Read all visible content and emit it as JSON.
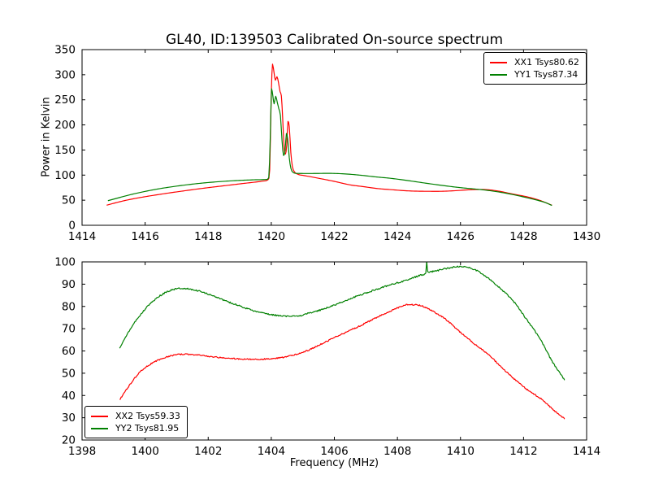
{
  "title": "GL40, ID:139503 Calibrated On-source spectrum",
  "chart_data": [
    {
      "type": "line",
      "title": "GL40, ID:139503 Calibrated On-source spectrum",
      "xlabel": "",
      "ylabel": "Power in Kelvin",
      "xlim": [
        1414,
        1430
      ],
      "ylim": [
        0,
        350
      ],
      "x_ticks": [
        1414,
        1416,
        1418,
        1420,
        1422,
        1424,
        1426,
        1428,
        1430
      ],
      "y_ticks": [
        0,
        50,
        100,
        150,
        200,
        250,
        300,
        350
      ],
      "grid": false,
      "legend_position": "upper right",
      "series": [
        {
          "name": "XX1 Tsys80.62",
          "color": "#ff0000",
          "noise": 0,
          "points": [
            [
              1414.78,
              40
            ],
            [
              1415.2,
              47
            ],
            [
              1415.6,
              52.5
            ],
            [
              1416.0,
              57
            ],
            [
              1416.4,
              61
            ],
            [
              1416.8,
              64.8
            ],
            [
              1417.2,
              68.3
            ],
            [
              1417.6,
              71.8
            ],
            [
              1418.0,
              75
            ],
            [
              1418.4,
              78
            ],
            [
              1418.8,
              81
            ],
            [
              1419.2,
              84
            ],
            [
              1419.55,
              86.5
            ],
            [
              1419.8,
              88.5
            ],
            [
              1419.9,
              91
            ],
            [
              1419.95,
              110
            ],
            [
              1420.0,
              260
            ],
            [
              1420.04,
              321
            ],
            [
              1420.09,
              303
            ],
            [
              1420.13,
              289
            ],
            [
              1420.18,
              296
            ],
            [
              1420.23,
              284
            ],
            [
              1420.28,
              266
            ],
            [
              1420.32,
              258
            ],
            [
              1420.36,
              215
            ],
            [
              1420.41,
              152
            ],
            [
              1420.45,
              142
            ],
            [
              1420.49,
              160
            ],
            [
              1420.53,
              207
            ],
            [
              1420.57,
              197
            ],
            [
              1420.62,
              145
            ],
            [
              1420.67,
              117
            ],
            [
              1420.73,
              107
            ],
            [
              1420.85,
              101.5
            ],
            [
              1421.0,
              99.5
            ],
            [
              1421.2,
              97.3
            ],
            [
              1421.6,
              92.5
            ],
            [
              1422.0,
              87.5
            ],
            [
              1422.5,
              80.5
            ],
            [
              1422.9,
              77.2
            ],
            [
              1423.4,
              73
            ],
            [
              1423.8,
              71
            ],
            [
              1424.3,
              68.7
            ],
            [
              1424.8,
              67.8
            ],
            [
              1425.3,
              67.7
            ],
            [
              1425.8,
              68.8
            ],
            [
              1426.3,
              70.8
            ],
            [
              1426.7,
              71.4
            ],
            [
              1427.2,
              68.2
            ],
            [
              1427.6,
              63
            ],
            [
              1428.1,
              56.9
            ],
            [
              1428.5,
              50
            ],
            [
              1428.9,
              40
            ]
          ]
        },
        {
          "name": "YY1 Tsys87.34",
          "color": "#008000",
          "noise": 0,
          "points": [
            [
              1414.82,
              49
            ],
            [
              1415.2,
              55.5
            ],
            [
              1415.6,
              62
            ],
            [
              1416.0,
              67.5
            ],
            [
              1416.4,
              72.3
            ],
            [
              1416.8,
              76.3
            ],
            [
              1417.2,
              79.7
            ],
            [
              1417.6,
              82.7
            ],
            [
              1418.0,
              85.2
            ],
            [
              1418.4,
              87.2
            ],
            [
              1418.8,
              88.8
            ],
            [
              1419.2,
              90
            ],
            [
              1419.6,
              90.8
            ],
            [
              1419.85,
              91.3
            ],
            [
              1419.92,
              95
            ],
            [
              1419.97,
              180
            ],
            [
              1420.01,
              272
            ],
            [
              1420.05,
              258
            ],
            [
              1420.09,
              242
            ],
            [
              1420.14,
              257
            ],
            [
              1420.19,
              245
            ],
            [
              1420.24,
              232
            ],
            [
              1420.29,
              219
            ],
            [
              1420.34,
              170
            ],
            [
              1420.39,
              139
            ],
            [
              1420.44,
              150
            ],
            [
              1420.48,
              183
            ],
            [
              1420.52,
              172
            ],
            [
              1420.57,
              135
            ],
            [
              1420.62,
              114
            ],
            [
              1420.68,
              106
            ],
            [
              1420.8,
              103.5
            ],
            [
              1421.2,
              103.2
            ],
            [
              1421.8,
              103.5
            ],
            [
              1422.3,
              102.5
            ],
            [
              1422.8,
              100
            ],
            [
              1423.3,
              96.5
            ],
            [
              1423.8,
              93.5
            ],
            [
              1424.4,
              88.5
            ],
            [
              1425.0,
              83
            ],
            [
              1425.6,
              78
            ],
            [
              1426.0,
              75
            ],
            [
              1426.4,
              72.6
            ],
            [
              1426.8,
              70
            ],
            [
              1427.2,
              66.5
            ],
            [
              1427.6,
              62
            ],
            [
              1428.0,
              56.5
            ],
            [
              1428.4,
              50.5
            ],
            [
              1428.7,
              45
            ],
            [
              1428.9,
              39.5
            ]
          ]
        }
      ]
    },
    {
      "type": "line",
      "title": "",
      "xlabel": "Frequency (MHz)",
      "ylabel": "",
      "xlim": [
        1398,
        1414
      ],
      "ylim": [
        20,
        100
      ],
      "x_ticks": [
        1398,
        1400,
        1402,
        1404,
        1406,
        1408,
        1410,
        1412,
        1414
      ],
      "y_ticks": [
        20,
        30,
        40,
        50,
        60,
        70,
        80,
        90,
        100
      ],
      "grid": false,
      "legend_position": "lower left",
      "series": [
        {
          "name": "XX2 Tsys59.33",
          "color": "#ff0000",
          "noise": 0.28,
          "points": [
            [
              1399.19,
              38
            ],
            [
              1399.5,
              44.5
            ],
            [
              1399.8,
              50
            ],
            [
              1400.1,
              53.5
            ],
            [
              1400.4,
              55.8
            ],
            [
              1400.7,
              57.3
            ],
            [
              1401.0,
              58.3
            ],
            [
              1401.3,
              58.5
            ],
            [
              1401.6,
              58.2
            ],
            [
              1402.0,
              57.6
            ],
            [
              1402.4,
              57.0
            ],
            [
              1402.8,
              56.6
            ],
            [
              1403.2,
              56.3
            ],
            [
              1403.6,
              56.3
            ],
            [
              1404.0,
              56.6
            ],
            [
              1404.4,
              57.2
            ],
            [
              1404.8,
              58.5
            ],
            [
              1405.2,
              60.5
            ],
            [
              1405.6,
              63.2
            ],
            [
              1406.0,
              66
            ],
            [
              1406.4,
              68.6
            ],
            [
              1406.8,
              71.2
            ],
            [
              1407.2,
              74
            ],
            [
              1407.6,
              76.8
            ],
            [
              1408.0,
              79.3
            ],
            [
              1408.3,
              80.8
            ],
            [
              1408.7,
              80.5
            ],
            [
              1409.1,
              78
            ],
            [
              1409.5,
              74.5
            ],
            [
              1410.0,
              68.4
            ],
            [
              1410.4,
              63.7
            ],
            [
              1410.9,
              58.2
            ],
            [
              1411.3,
              52.7
            ],
            [
              1411.7,
              47.5
            ],
            [
              1412.1,
              42.8
            ],
            [
              1412.6,
              38
            ],
            [
              1413.0,
              32.8
            ],
            [
              1413.3,
              29.5
            ]
          ]
        },
        {
          "name": "YY2 Tsys81.95",
          "color": "#008000",
          "noise": 0.32,
          "points": [
            [
              1399.19,
              61
            ],
            [
              1399.45,
              68
            ],
            [
              1399.7,
              73.5
            ],
            [
              1399.95,
              78
            ],
            [
              1400.2,
              81.7
            ],
            [
              1400.45,
              84.6
            ],
            [
              1400.7,
              86.6
            ],
            [
              1400.95,
              87.8
            ],
            [
              1401.2,
              88.1
            ],
            [
              1401.45,
              87.7
            ],
            [
              1401.7,
              86.9
            ],
            [
              1402.0,
              85.5
            ],
            [
              1402.4,
              83.3
            ],
            [
              1402.8,
              81.2
            ],
            [
              1403.2,
              79.2
            ],
            [
              1403.6,
              77.5
            ],
            [
              1404.0,
              76.3
            ],
            [
              1404.4,
              75.7
            ],
            [
              1404.8,
              75.6
            ],
            [
              1405.2,
              77
            ],
            [
              1405.6,
              78.6
            ],
            [
              1406.0,
              80.6
            ],
            [
              1406.4,
              82.9
            ],
            [
              1406.8,
              85
            ],
            [
              1407.2,
              87
            ],
            [
              1407.6,
              88.9
            ],
            [
              1408.0,
              90.6
            ],
            [
              1408.4,
              92.3
            ],
            [
              1408.8,
              94.2
            ],
            [
              1408.9,
              95
            ],
            [
              1408.93,
              100
            ],
            [
              1408.96,
              95.4
            ],
            [
              1409.2,
              95.9
            ],
            [
              1409.6,
              97.2
            ],
            [
              1410.0,
              97.9
            ],
            [
              1410.4,
              96.8
            ],
            [
              1410.8,
              93.5
            ],
            [
              1411.2,
              88.8
            ],
            [
              1411.7,
              82
            ],
            [
              1412.1,
              74
            ],
            [
              1412.5,
              66
            ],
            [
              1412.9,
              55.5
            ],
            [
              1413.3,
              47
            ]
          ]
        }
      ]
    }
  ]
}
